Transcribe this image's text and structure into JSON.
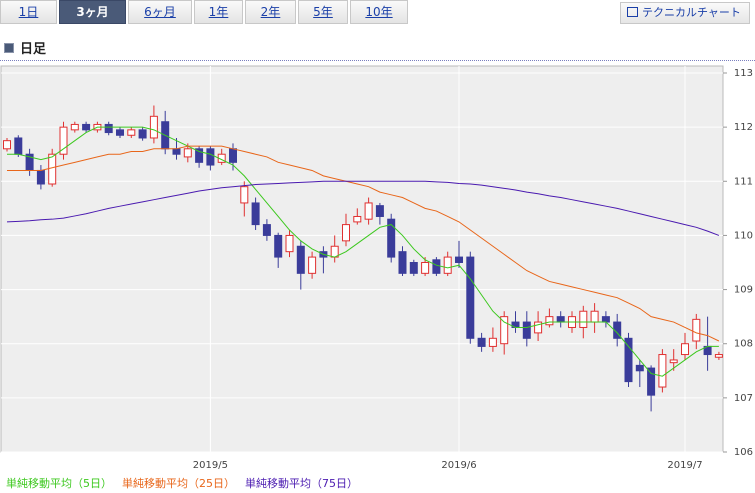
{
  "tabs": {
    "labels": [
      "1日",
      "3ヶ月",
      "6ヶ月",
      "1年",
      "2年",
      "5年",
      "10年"
    ],
    "active": 1
  },
  "header": {
    "button": "テクニカルチャート",
    "section": "日足"
  },
  "chart_data": {
    "type": "candlestick",
    "categories": [
      null,
      null,
      null,
      null,
      null,
      null,
      null,
      null,
      null,
      null,
      null,
      null,
      null,
      null,
      null,
      null,
      null,
      null,
      "2019/5",
      null,
      null,
      null,
      null,
      null,
      null,
      null,
      null,
      null,
      null,
      null,
      null,
      null,
      null,
      null,
      null,
      null,
      null,
      null,
      null,
      null,
      "2019/6",
      null,
      null,
      null,
      null,
      null,
      null,
      null,
      null,
      null,
      null,
      null,
      null,
      null,
      null,
      null,
      null,
      null,
      null,
      null,
      "2019/7",
      null,
      null,
      null
    ],
    "open": [
      111.6,
      111.8,
      111.5,
      111.2,
      110.95,
      111.5,
      111.95,
      112.05,
      111.95,
      112.05,
      111.95,
      111.85,
      111.95,
      111.8,
      112.1,
      111.6,
      111.45,
      111.6,
      111.6,
      111.35,
      111.6,
      110.6,
      110.6,
      110.2,
      110.0,
      109.7,
      109.8,
      109.3,
      109.7,
      109.6,
      109.9,
      110.25,
      110.3,
      110.55,
      110.3,
      109.7,
      109.5,
      109.3,
      109.55,
      109.3,
      109.6,
      109.6,
      108.1,
      107.95,
      108.0,
      108.4,
      108.4,
      108.2,
      108.35,
      108.5,
      108.3,
      108.3,
      108.4,
      108.5,
      108.4,
      108.1,
      107.6,
      107.55,
      107.2,
      107.65,
      107.8,
      108.05,
      107.95,
      107.75
    ],
    "high": [
      111.8,
      111.85,
      111.6,
      111.3,
      111.6,
      112.1,
      112.1,
      112.1,
      112.1,
      112.1,
      112.0,
      112.0,
      112.0,
      112.4,
      112.3,
      111.8,
      111.7,
      111.65,
      111.65,
      111.6,
      111.7,
      111.0,
      110.7,
      110.3,
      110.05,
      110.1,
      109.9,
      109.7,
      109.8,
      110.0,
      110.4,
      110.5,
      110.7,
      110.6,
      110.4,
      109.8,
      109.55,
      109.6,
      109.6,
      109.7,
      109.9,
      109.7,
      108.2,
      108.3,
      108.6,
      108.6,
      108.6,
      108.6,
      108.65,
      108.6,
      108.6,
      108.7,
      108.75,
      108.6,
      108.55,
      108.2,
      107.7,
      107.6,
      107.9,
      107.9,
      108.2,
      108.55,
      108.5,
      107.85
    ],
    "low": [
      111.55,
      111.45,
      111.1,
      110.85,
      110.9,
      111.4,
      111.9,
      111.9,
      111.9,
      111.85,
      111.8,
      111.8,
      111.75,
      111.7,
      111.5,
      111.4,
      111.35,
      111.25,
      111.2,
      111.3,
      111.2,
      110.35,
      110.1,
      109.9,
      109.4,
      109.6,
      109.0,
      109.2,
      109.3,
      109.5,
      109.8,
      110.2,
      110.2,
      110.2,
      109.5,
      109.25,
      109.25,
      109.25,
      109.25,
      109.25,
      109.4,
      108.0,
      107.85,
      107.85,
      107.8,
      108.2,
      107.95,
      108.05,
      108.3,
      108.3,
      108.2,
      108.1,
      108.2,
      108.3,
      107.95,
      107.2,
      107.2,
      106.75,
      107.1,
      107.5,
      107.7,
      107.9,
      107.5,
      107.7
    ],
    "close": [
      111.75,
      111.5,
      111.2,
      110.95,
      111.5,
      112.0,
      112.05,
      111.95,
      112.05,
      111.9,
      111.85,
      111.95,
      111.8,
      112.2,
      111.6,
      111.5,
      111.6,
      111.35,
      111.3,
      111.5,
      111.35,
      110.9,
      110.2,
      110.0,
      109.6,
      110.0,
      109.3,
      109.6,
      109.6,
      109.8,
      110.2,
      110.35,
      110.6,
      110.35,
      109.6,
      109.3,
      109.3,
      109.5,
      109.3,
      109.6,
      109.5,
      108.1,
      107.95,
      108.1,
      108.5,
      108.3,
      108.1,
      108.4,
      108.5,
      108.4,
      108.5,
      108.6,
      108.6,
      108.4,
      108.1,
      107.3,
      107.5,
      107.05,
      107.8,
      107.7,
      108.0,
      108.45,
      107.8,
      107.8
    ],
    "up_color": "#e03030",
    "down_color": "#3a3c9a",
    "series": [
      {
        "name": "単純移動平均（5日）",
        "color": "#3cc81e",
        "values": [
          111.5,
          111.5,
          111.45,
          111.4,
          111.45,
          111.6,
          111.75,
          111.9,
          112.0,
          112.0,
          112.0,
          112.0,
          112.0,
          111.95,
          111.85,
          111.75,
          111.65,
          111.55,
          111.5,
          111.4,
          111.3,
          111.1,
          110.85,
          110.6,
          110.35,
          110.1,
          109.9,
          109.75,
          109.65,
          109.6,
          109.7,
          109.85,
          110.0,
          110.15,
          110.2,
          110.0,
          109.75,
          109.55,
          109.45,
          109.4,
          109.45,
          109.2,
          108.9,
          108.6,
          108.4,
          108.3,
          108.3,
          108.35,
          108.4,
          108.4,
          108.4,
          108.4,
          108.4,
          108.4,
          108.2,
          107.95,
          107.7,
          107.45,
          107.4,
          107.55,
          107.7,
          107.85,
          107.95,
          107.95
        ]
      },
      {
        "name": "単純移動平均（25日）",
        "color": "#e8661a",
        "values": [
          111.2,
          111.2,
          111.2,
          111.2,
          111.25,
          111.3,
          111.35,
          111.4,
          111.45,
          111.5,
          111.5,
          111.55,
          111.55,
          111.6,
          111.6,
          111.6,
          111.65,
          111.65,
          111.65,
          111.65,
          111.6,
          111.55,
          111.5,
          111.45,
          111.35,
          111.3,
          111.25,
          111.2,
          111.1,
          111.05,
          111.0,
          110.95,
          110.9,
          110.8,
          110.75,
          110.7,
          110.6,
          110.5,
          110.45,
          110.35,
          110.25,
          110.1,
          109.95,
          109.8,
          109.65,
          109.5,
          109.35,
          109.25,
          109.15,
          109.1,
          109.05,
          109.0,
          108.95,
          108.9,
          108.85,
          108.75,
          108.65,
          108.5,
          108.45,
          108.4,
          108.3,
          108.2,
          108.15,
          108.05
        ]
      },
      {
        "name": "単純移動平均（75日）",
        "color": "#4a1ab0",
        "values": [
          110.25,
          110.26,
          110.27,
          110.29,
          110.3,
          110.32,
          110.36,
          110.4,
          110.45,
          110.5,
          110.54,
          110.58,
          110.62,
          110.66,
          110.7,
          110.74,
          110.78,
          110.82,
          110.85,
          110.88,
          110.9,
          110.92,
          110.94,
          110.95,
          110.96,
          110.97,
          110.98,
          110.99,
          111.0,
          111.0,
          111.0,
          111.0,
          111.0,
          111.0,
          111.0,
          111.0,
          111.0,
          111.0,
          110.99,
          110.98,
          110.96,
          110.95,
          110.93,
          110.9,
          110.87,
          110.84,
          110.8,
          110.77,
          110.73,
          110.7,
          110.66,
          110.62,
          110.58,
          110.54,
          110.5,
          110.45,
          110.4,
          110.35,
          110.3,
          110.25,
          110.2,
          110.15,
          110.08,
          110.0
        ]
      }
    ],
    "ylim": [
      106,
      113
    ],
    "yticks": [
      106,
      107,
      108,
      109,
      110,
      111,
      112,
      113
    ],
    "grid": true
  }
}
